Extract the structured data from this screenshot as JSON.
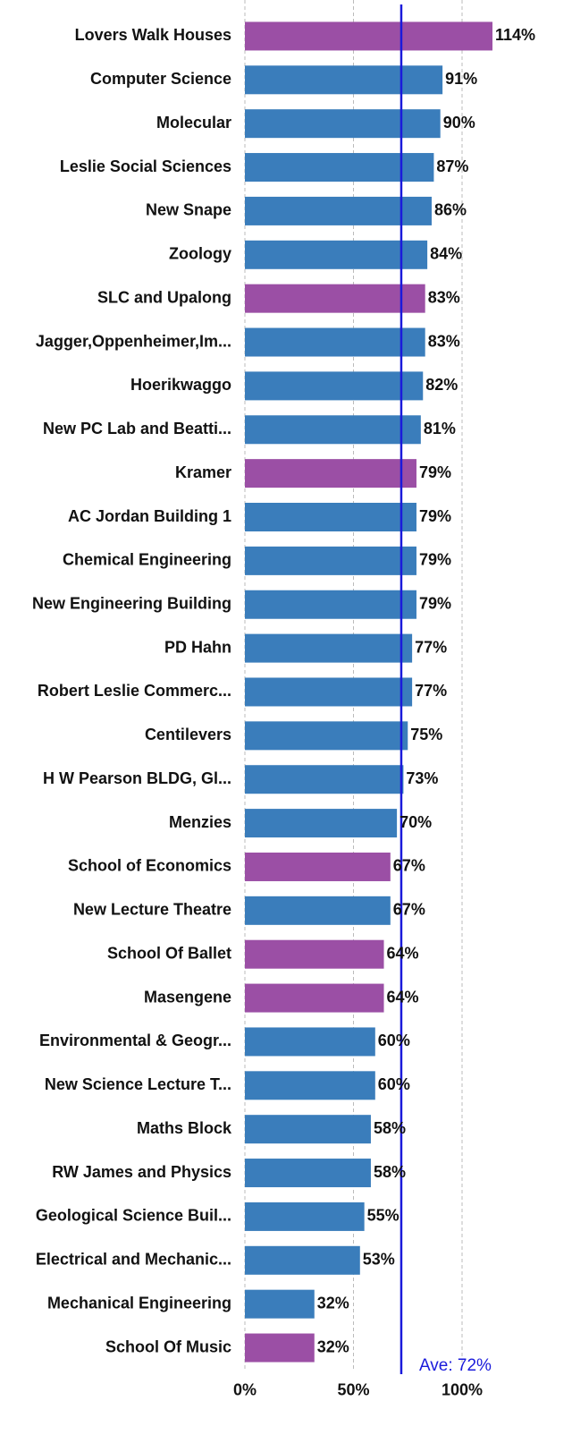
{
  "chart_data": {
    "type": "barh",
    "categories": [
      "Lovers Walk Houses",
      "Computer Science",
      "Molecular",
      "Leslie Social Sciences",
      "New Snape",
      "Zoology",
      "SLC and Upalong",
      "Jagger,Oppenheimer,Im...",
      "Hoerikwaggo",
      "New PC Lab and Beatti...",
      "Kramer",
      "AC Jordan Building 1",
      "Chemical Engineering",
      "New Engineering Building",
      "PD Hahn",
      "Robert Leslie Commerc...",
      "Centilevers",
      "H W Pearson BLDG, Gl...",
      "Menzies",
      "School of Economics",
      "New Lecture Theatre",
      "School Of Ballet",
      "Masengene",
      "Environmental & Geogr...",
      "New Science Lecture T...",
      "Maths Block",
      "RW James and Physics",
      "Geological Science Buil...",
      "Electrical and Mechanic...",
      "Mechanical Engineering",
      "School Of Music"
    ],
    "values": [
      114,
      91,
      90,
      87,
      86,
      84,
      83,
      83,
      82,
      81,
      79,
      79,
      79,
      79,
      77,
      77,
      75,
      73,
      70,
      67,
      67,
      64,
      64,
      60,
      60,
      58,
      58,
      55,
      53,
      32,
      32
    ],
    "value_labels": [
      "114%",
      "91%",
      "90%",
      "87%",
      "86%",
      "84%",
      "83%",
      "83%",
      "82%",
      "81%",
      "79%",
      "79%",
      "79%",
      "79%",
      "77%",
      "77%",
      "75%",
      "73%",
      "70%",
      "67%",
      "67%",
      "64%",
      "64%",
      "60%",
      "60%",
      "58%",
      "58%",
      "55%",
      "53%",
      "32%",
      "32%"
    ],
    "colors": [
      "#9b4fa5",
      "#3a7dbb",
      "#3a7dbb",
      "#3a7dbb",
      "#3a7dbb",
      "#3a7dbb",
      "#9b4fa5",
      "#3a7dbb",
      "#3a7dbb",
      "#3a7dbb",
      "#9b4fa5",
      "#3a7dbb",
      "#3a7dbb",
      "#3a7dbb",
      "#3a7dbb",
      "#3a7dbb",
      "#3a7dbb",
      "#3a7dbb",
      "#3a7dbb",
      "#9b4fa5",
      "#3a7dbb",
      "#9b4fa5",
      "#9b4fa5",
      "#3a7dbb",
      "#3a7dbb",
      "#3a7dbb",
      "#3a7dbb",
      "#3a7dbb",
      "#3a7dbb",
      "#3a7dbb",
      "#9b4fa5"
    ],
    "xlim": [
      0,
      150
    ],
    "xticks": [
      {
        "value": 0,
        "label": "0%"
      },
      {
        "value": 50,
        "label": "50%"
      },
      {
        "value": 100,
        "label": "100%"
      }
    ],
    "grid": true,
    "average": {
      "value": 72,
      "label": "Ave: 72%",
      "color": "#1a1adb"
    }
  }
}
